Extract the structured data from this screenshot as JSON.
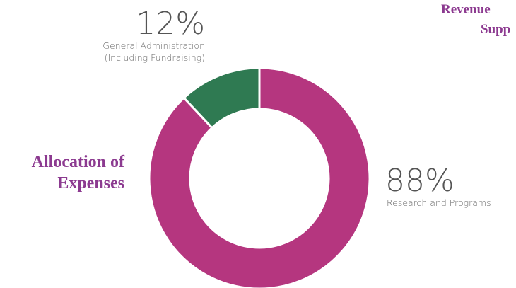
{
  "chart_data": {
    "type": "donut",
    "title": "Allocation of Expenses",
    "categories": [
      "Research and Programs",
      "General Administration (Including Fundraising)"
    ],
    "values": [
      88,
      12
    ],
    "value_labels": [
      "88%",
      "12%"
    ],
    "colors": [
      "#b5367f",
      "#2f7a52"
    ]
  },
  "cropped_heading": [
    "Revenue",
    "Supp"
  ]
}
